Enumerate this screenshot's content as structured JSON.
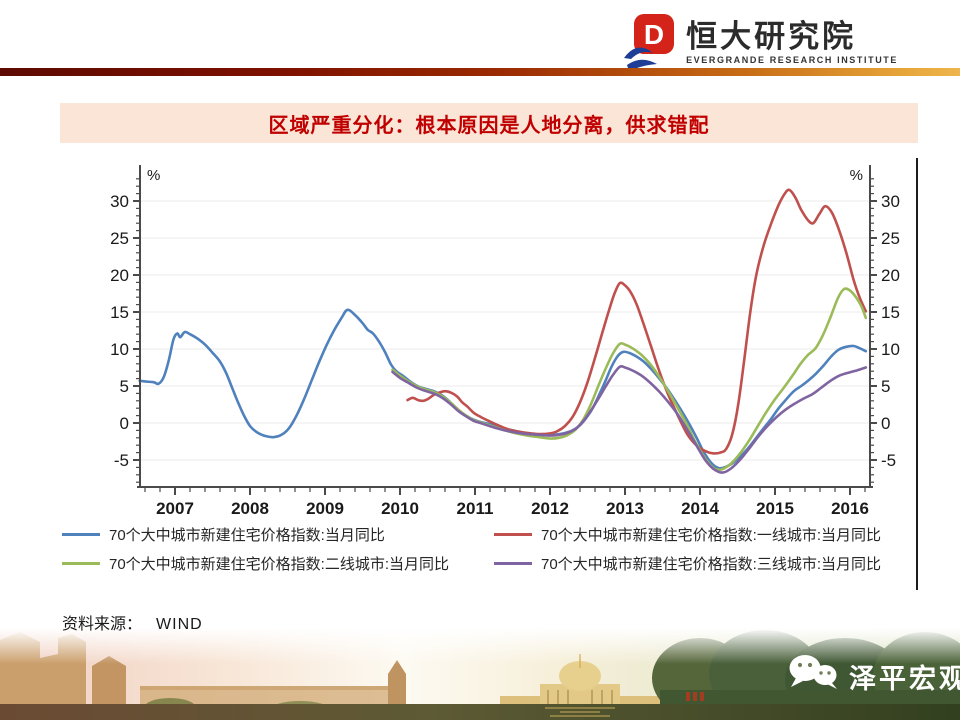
{
  "header": {
    "logo_cn": "恒大研究院",
    "logo_en": "EVERGRANDE RESEARCH INSTITUTE",
    "logo_red": "#D42318",
    "logo_blue": "#1E3E96",
    "accent_bar_colors": [
      "#5E0A00",
      "#EEB44E"
    ]
  },
  "title_bar": {
    "text": "区域严重分化：根本原因是人地分离，供求错配",
    "bg": "#FBE5D6",
    "color": "#C00000"
  },
  "source": {
    "label": "资料来源：",
    "value": "WIND"
  },
  "watermark": {
    "text": "泽平宏观",
    "icon": "wechat-icon"
  },
  "chart_data": {
    "type": "line",
    "unit": "%",
    "y_axis": {
      "label": "%",
      "ticks": [
        -5,
        0,
        5,
        10,
        15,
        20,
        25,
        30
      ],
      "minor_step": 1,
      "dual": true,
      "range_shown": [
        -8,
        33
      ]
    },
    "x_axis": {
      "ticks": [
        2007,
        2008,
        2009,
        2010,
        2011,
        2012,
        2013,
        2014,
        2015,
        2016
      ],
      "minor_step": 0.2,
      "start": 2006.53,
      "end": 2016.27
    },
    "grid": "horizontal-major-only",
    "legend_position": "bottom-two-columns",
    "series": [
      {
        "name": "70个大中城市新建住宅价格指数:当月同比",
        "color": "#4F81BD",
        "points": [
          [
            2006.53,
            5.7
          ],
          [
            2006.62,
            5.6
          ],
          [
            2006.72,
            5.5
          ],
          [
            2006.78,
            5.3
          ],
          [
            2006.85,
            6.2
          ],
          [
            2006.92,
            8.6
          ],
          [
            2006.98,
            11.3
          ],
          [
            2007.03,
            12.1
          ],
          [
            2007.07,
            11.6
          ],
          [
            2007.13,
            12.3
          ],
          [
            2007.2,
            12.0
          ],
          [
            2007.3,
            11.4
          ],
          [
            2007.4,
            10.6
          ],
          [
            2007.5,
            9.5
          ],
          [
            2007.6,
            8.3
          ],
          [
            2007.68,
            6.8
          ],
          [
            2007.76,
            4.8
          ],
          [
            2007.84,
            2.8
          ],
          [
            2007.92,
            1.0
          ],
          [
            2008.0,
            -0.4
          ],
          [
            2008.1,
            -1.3
          ],
          [
            2008.22,
            -1.8
          ],
          [
            2008.32,
            -1.9
          ],
          [
            2008.42,
            -1.6
          ],
          [
            2008.52,
            -0.7
          ],
          [
            2008.62,
            1.0
          ],
          [
            2008.72,
            3.2
          ],
          [
            2008.82,
            5.7
          ],
          [
            2008.92,
            8.2
          ],
          [
            2009.02,
            10.5
          ],
          [
            2009.12,
            12.5
          ],
          [
            2009.22,
            14.2
          ],
          [
            2009.3,
            15.3
          ],
          [
            2009.4,
            14.6
          ],
          [
            2009.5,
            13.5
          ],
          [
            2009.57,
            12.6
          ],
          [
            2009.64,
            12.1
          ],
          [
            2009.72,
            11.0
          ],
          [
            2009.8,
            9.6
          ],
          [
            2009.88,
            7.9
          ],
          [
            2009.95,
            7.0
          ],
          [
            2010.05,
            6.3
          ],
          [
            2010.15,
            5.5
          ],
          [
            2010.25,
            4.9
          ],
          [
            2010.35,
            4.6
          ],
          [
            2010.45,
            4.3
          ],
          [
            2010.55,
            3.8
          ],
          [
            2010.65,
            3.0
          ],
          [
            2010.75,
            2.0
          ],
          [
            2010.85,
            1.2
          ],
          [
            2010.95,
            0.6
          ],
          [
            2011.05,
            0.2
          ],
          [
            2011.18,
            -0.1
          ],
          [
            2011.32,
            -0.5
          ],
          [
            2011.46,
            -0.9
          ],
          [
            2011.6,
            -1.2
          ],
          [
            2011.75,
            -1.5
          ],
          [
            2011.9,
            -1.6
          ],
          [
            2012.05,
            -1.6
          ],
          [
            2012.18,
            -1.4
          ],
          [
            2012.3,
            -1.0
          ],
          [
            2012.4,
            -0.3
          ],
          [
            2012.5,
            0.9
          ],
          [
            2012.58,
            2.2
          ],
          [
            2012.66,
            3.9
          ],
          [
            2012.74,
            5.7
          ],
          [
            2012.82,
            7.6
          ],
          [
            2012.9,
            9.0
          ],
          [
            2012.97,
            9.6
          ],
          [
            2013.05,
            9.5
          ],
          [
            2013.15,
            9.0
          ],
          [
            2013.25,
            8.3
          ],
          [
            2013.35,
            7.3
          ],
          [
            2013.45,
            6.1
          ],
          [
            2013.55,
            4.8
          ],
          [
            2013.65,
            3.3
          ],
          [
            2013.75,
            1.7
          ],
          [
            2013.85,
            0.0
          ],
          [
            2013.95,
            -1.9
          ],
          [
            2014.05,
            -3.9
          ],
          [
            2014.15,
            -5.4
          ],
          [
            2014.25,
            -6.1
          ],
          [
            2014.35,
            -5.9
          ],
          [
            2014.45,
            -5.3
          ],
          [
            2014.55,
            -4.4
          ],
          [
            2014.65,
            -3.3
          ],
          [
            2014.75,
            -2.0
          ],
          [
            2014.85,
            -0.7
          ],
          [
            2014.95,
            0.6
          ],
          [
            2015.05,
            2.0
          ],
          [
            2015.15,
            3.2
          ],
          [
            2015.25,
            4.3
          ],
          [
            2015.35,
            5.0
          ],
          [
            2015.45,
            5.8
          ],
          [
            2015.55,
            6.7
          ],
          [
            2015.65,
            7.8
          ],
          [
            2015.75,
            9.0
          ],
          [
            2015.85,
            9.9
          ],
          [
            2015.95,
            10.3
          ],
          [
            2016.05,
            10.4
          ],
          [
            2016.13,
            10.1
          ],
          [
            2016.21,
            9.7
          ]
        ]
      },
      {
        "name": "70个大中城市新建住宅价格指数:一线城市:当月同比",
        "color": "#C0504D",
        "points": [
          [
            2010.1,
            3.1
          ],
          [
            2010.17,
            3.4
          ],
          [
            2010.24,
            3.1
          ],
          [
            2010.31,
            3.0
          ],
          [
            2010.38,
            3.3
          ],
          [
            2010.45,
            3.8
          ],
          [
            2010.52,
            4.1
          ],
          [
            2010.6,
            4.3
          ],
          [
            2010.68,
            4.1
          ],
          [
            2010.76,
            3.6
          ],
          [
            2010.83,
            2.8
          ],
          [
            2010.9,
            2.2
          ],
          [
            2010.98,
            1.4
          ],
          [
            2011.08,
            0.8
          ],
          [
            2011.2,
            0.2
          ],
          [
            2011.33,
            -0.4
          ],
          [
            2011.46,
            -0.9
          ],
          [
            2011.6,
            -1.2
          ],
          [
            2011.75,
            -1.4
          ],
          [
            2011.88,
            -1.5
          ],
          [
            2012.0,
            -1.4
          ],
          [
            2012.1,
            -1.1
          ],
          [
            2012.2,
            -0.4
          ],
          [
            2012.3,
            0.8
          ],
          [
            2012.4,
            2.8
          ],
          [
            2012.5,
            5.5
          ],
          [
            2012.6,
            8.8
          ],
          [
            2012.7,
            12.3
          ],
          [
            2012.78,
            15.0
          ],
          [
            2012.86,
            17.5
          ],
          [
            2012.93,
            18.9
          ],
          [
            2013.0,
            18.6
          ],
          [
            2013.08,
            17.6
          ],
          [
            2013.16,
            15.9
          ],
          [
            2013.25,
            13.3
          ],
          [
            2013.35,
            10.3
          ],
          [
            2013.45,
            7.2
          ],
          [
            2013.57,
            4.0
          ],
          [
            2013.7,
            1.1
          ],
          [
            2013.83,
            -1.5
          ],
          [
            2013.95,
            -3.0
          ],
          [
            2014.07,
            -3.8
          ],
          [
            2014.17,
            -4.1
          ],
          [
            2014.27,
            -4.0
          ],
          [
            2014.35,
            -3.5
          ],
          [
            2014.43,
            -1.5
          ],
          [
            2014.51,
            2.5
          ],
          [
            2014.59,
            8.5
          ],
          [
            2014.67,
            15.0
          ],
          [
            2014.75,
            20.0
          ],
          [
            2014.85,
            24.0
          ],
          [
            2014.95,
            27.0
          ],
          [
            2015.05,
            29.5
          ],
          [
            2015.13,
            31.0
          ],
          [
            2015.19,
            31.5
          ],
          [
            2015.27,
            30.5
          ],
          [
            2015.35,
            28.8
          ],
          [
            2015.44,
            27.4
          ],
          [
            2015.51,
            27.0
          ],
          [
            2015.59,
            28.2
          ],
          [
            2015.67,
            29.3
          ],
          [
            2015.76,
            28.4
          ],
          [
            2015.85,
            26.2
          ],
          [
            2015.95,
            23.0
          ],
          [
            2016.05,
            19.3
          ],
          [
            2016.13,
            16.9
          ],
          [
            2016.21,
            15.1
          ]
        ]
      },
      {
        "name": "70个大中城市新建住宅价格指数:二线城市:当月同比",
        "color": "#9BBB59",
        "points": [
          [
            2009.9,
            7.2
          ],
          [
            2010.0,
            6.4
          ],
          [
            2010.1,
            5.7
          ],
          [
            2010.22,
            5.0
          ],
          [
            2010.35,
            4.5
          ],
          [
            2010.47,
            4.1
          ],
          [
            2010.58,
            3.5
          ],
          [
            2010.68,
            2.7
          ],
          [
            2010.78,
            1.8
          ],
          [
            2010.88,
            1.0
          ],
          [
            2010.98,
            0.4
          ],
          [
            2011.1,
            0.0
          ],
          [
            2011.25,
            -0.5
          ],
          [
            2011.4,
            -1.0
          ],
          [
            2011.55,
            -1.4
          ],
          [
            2011.7,
            -1.7
          ],
          [
            2011.85,
            -1.9
          ],
          [
            2012.0,
            -2.1
          ],
          [
            2012.12,
            -2.0
          ],
          [
            2012.24,
            -1.6
          ],
          [
            2012.34,
            -0.9
          ],
          [
            2012.44,
            0.4
          ],
          [
            2012.54,
            2.4
          ],
          [
            2012.64,
            4.9
          ],
          [
            2012.74,
            7.3
          ],
          [
            2012.84,
            9.4
          ],
          [
            2012.93,
            10.7
          ],
          [
            2013.0,
            10.6
          ],
          [
            2013.1,
            10.1
          ],
          [
            2013.22,
            9.2
          ],
          [
            2013.34,
            7.9
          ],
          [
            2013.46,
            6.2
          ],
          [
            2013.58,
            4.2
          ],
          [
            2013.7,
            2.1
          ],
          [
            2013.83,
            -0.3
          ],
          [
            2013.95,
            -2.8
          ],
          [
            2014.07,
            -4.8
          ],
          [
            2014.18,
            -6.1
          ],
          [
            2014.28,
            -6.3
          ],
          [
            2014.4,
            -5.6
          ],
          [
            2014.52,
            -4.3
          ],
          [
            2014.64,
            -2.6
          ],
          [
            2014.76,
            -0.6
          ],
          [
            2014.88,
            1.4
          ],
          [
            2015.0,
            3.2
          ],
          [
            2015.12,
            4.8
          ],
          [
            2015.24,
            6.5
          ],
          [
            2015.34,
            8.0
          ],
          [
            2015.44,
            9.2
          ],
          [
            2015.54,
            10.1
          ],
          [
            2015.64,
            11.9
          ],
          [
            2015.74,
            14.3
          ],
          [
            2015.84,
            16.9
          ],
          [
            2015.92,
            18.1
          ],
          [
            2016.0,
            17.9
          ],
          [
            2016.08,
            17.0
          ],
          [
            2016.15,
            15.8
          ],
          [
            2016.21,
            14.2
          ]
        ]
      },
      {
        "name": "70个大中城市新建住宅价格指数:三线城市:当月同比",
        "color": "#8064A2",
        "points": [
          [
            2009.9,
            6.9
          ],
          [
            2010.0,
            6.1
          ],
          [
            2010.1,
            5.5
          ],
          [
            2010.22,
            4.8
          ],
          [
            2010.35,
            4.3
          ],
          [
            2010.47,
            3.9
          ],
          [
            2010.58,
            3.3
          ],
          [
            2010.68,
            2.5
          ],
          [
            2010.78,
            1.6
          ],
          [
            2010.88,
            0.9
          ],
          [
            2010.98,
            0.3
          ],
          [
            2011.1,
            -0.1
          ],
          [
            2011.25,
            -0.6
          ],
          [
            2011.4,
            -1.0
          ],
          [
            2011.55,
            -1.3
          ],
          [
            2011.7,
            -1.5
          ],
          [
            2011.85,
            -1.6
          ],
          [
            2012.0,
            -1.7
          ],
          [
            2012.12,
            -1.6
          ],
          [
            2012.24,
            -1.3
          ],
          [
            2012.34,
            -0.8
          ],
          [
            2012.44,
            0.2
          ],
          [
            2012.54,
            1.6
          ],
          [
            2012.64,
            3.2
          ],
          [
            2012.74,
            4.9
          ],
          [
            2012.84,
            6.5
          ],
          [
            2012.93,
            7.6
          ],
          [
            2013.0,
            7.5
          ],
          [
            2013.1,
            7.1
          ],
          [
            2013.22,
            6.4
          ],
          [
            2013.34,
            5.4
          ],
          [
            2013.46,
            4.2
          ],
          [
            2013.58,
            2.8
          ],
          [
            2013.7,
            1.2
          ],
          [
            2013.83,
            -0.9
          ],
          [
            2013.95,
            -3.0
          ],
          [
            2014.07,
            -5.0
          ],
          [
            2014.18,
            -6.2
          ],
          [
            2014.3,
            -6.7
          ],
          [
            2014.42,
            -6.1
          ],
          [
            2014.54,
            -4.9
          ],
          [
            2014.66,
            -3.4
          ],
          [
            2014.78,
            -1.8
          ],
          [
            2014.9,
            -0.4
          ],
          [
            2015.02,
            0.8
          ],
          [
            2015.14,
            1.8
          ],
          [
            2015.26,
            2.6
          ],
          [
            2015.38,
            3.3
          ],
          [
            2015.5,
            3.9
          ],
          [
            2015.62,
            4.8
          ],
          [
            2015.74,
            5.7
          ],
          [
            2015.86,
            6.4
          ],
          [
            2015.98,
            6.8
          ],
          [
            2016.09,
            7.1
          ],
          [
            2016.21,
            7.5
          ]
        ]
      }
    ]
  }
}
